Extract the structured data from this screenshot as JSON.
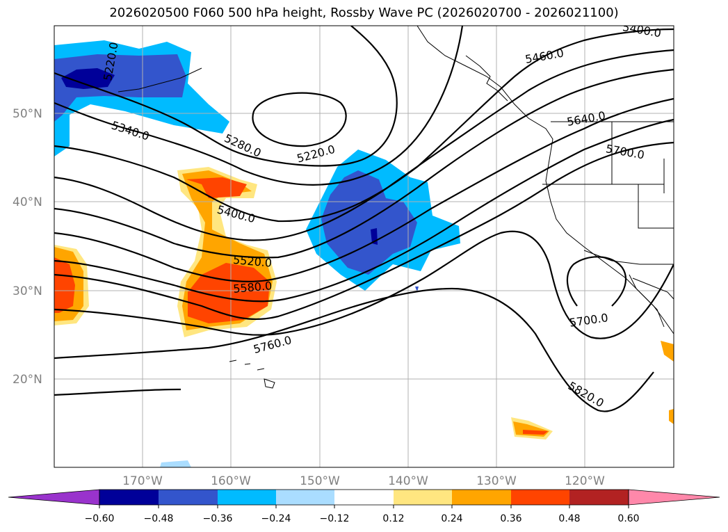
{
  "title": "2026020500 F060 500 hPa height, Rossby Wave PC (2026020700 - 2026021100)",
  "lat_labels": [
    "50°N",
    "40°N",
    "30°N",
    "20°N"
  ],
  "lon_labels": [
    "170°W",
    "160°W",
    "150°W",
    "140°W",
    "130°W",
    "120°W"
  ],
  "contour_labels": [
    "5400.0",
    "5460.0",
    "5640.0",
    "5700.0",
    "5220.0",
    "5280.0",
    "5340.0",
    "5400.0",
    "5520.0",
    "5580.0",
    "5760.0",
    "5700.0",
    "5820.0",
    "5220.0"
  ],
  "colorbar": {
    "ticks": [
      "−0.60",
      "−0.48",
      "−0.36",
      "−0.24",
      "−0.12",
      "0.12",
      "0.24",
      "0.36",
      "0.48",
      "0.60"
    ],
    "colors": [
      "#9933cc",
      "#000099",
      "#3355cc",
      "#00bbff",
      "#aaddff",
      "#ffffff",
      "#ffe680",
      "#ffa500",
      "#ff4400",
      "#b22222",
      "#ff88aa"
    ]
  },
  "colors": {
    "strong_neg": "#000099",
    "neg": "#3355cc",
    "mid_neg": "#00bbff",
    "weak_neg": "#aaddff",
    "weak_pos": "#ffe680",
    "pos": "#ffa500",
    "mid_pos": "#ff4400"
  }
}
